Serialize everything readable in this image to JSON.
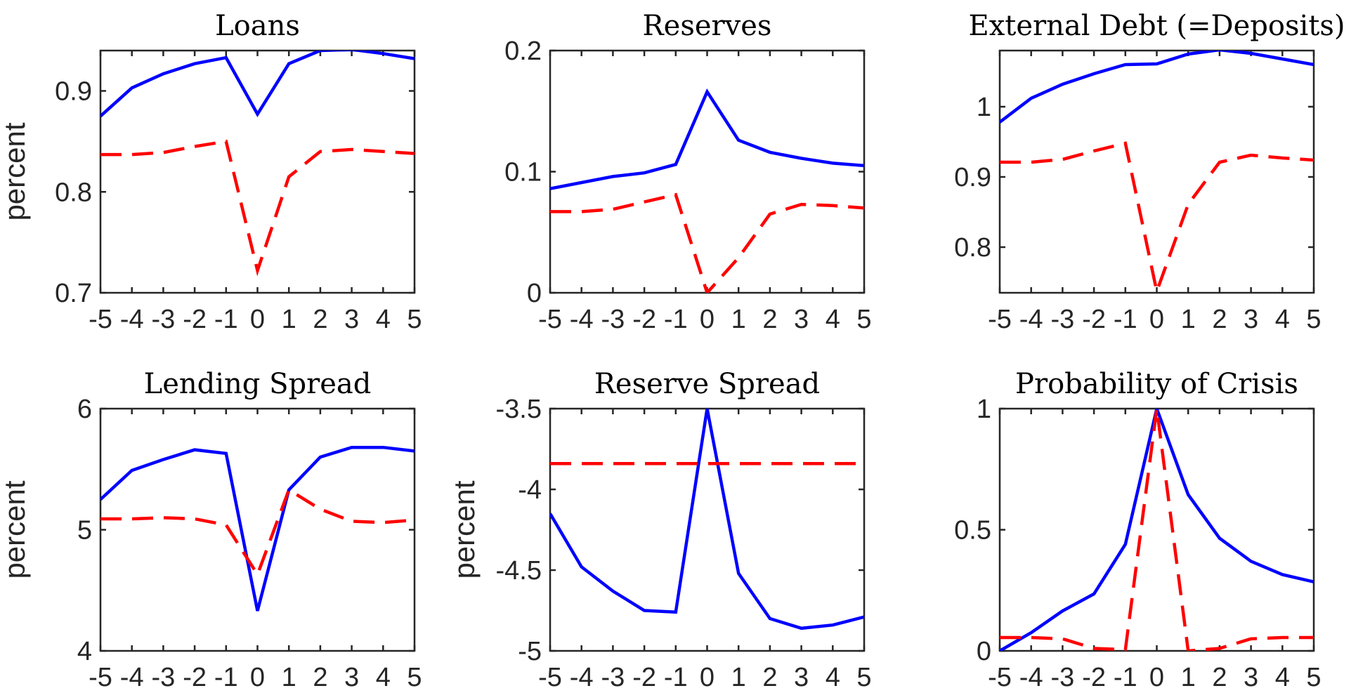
{
  "figure": {
    "series_colors": {
      "solid": "#0000ff",
      "dashed": "#ff0000"
    }
  },
  "chart_data": [
    {
      "type": "line",
      "title": "Loans",
      "ylabel": "percent",
      "x": [
        -5,
        -4,
        -3,
        -2,
        -1,
        0,
        1,
        2,
        3,
        4,
        5
      ],
      "xticks": [
        "-5",
        "-4",
        "-3",
        "-2",
        "-1",
        "0",
        "1",
        "2",
        "3",
        "4",
        "5"
      ],
      "ylim": [
        0.7,
        0.94
      ],
      "yticks": [
        0.7,
        0.8,
        0.9
      ],
      "ytick_labels": [
        "0.7",
        "0.8",
        "0.9"
      ],
      "series": [
        {
          "style": "solid",
          "color": "#0000ff",
          "values": [
            0.875,
            0.903,
            0.917,
            0.927,
            0.933,
            0.877,
            0.927,
            0.94,
            0.941,
            0.937,
            0.932
          ]
        },
        {
          "style": "dashed",
          "color": "#ff0000",
          "values": [
            0.837,
            0.837,
            0.839,
            0.845,
            0.85,
            0.722,
            0.815,
            0.84,
            0.842,
            0.84,
            0.838
          ]
        }
      ]
    },
    {
      "type": "line",
      "title": "Reserves",
      "ylabel": "",
      "x": [
        -5,
        -4,
        -3,
        -2,
        -1,
        0,
        1,
        2,
        3,
        4,
        5
      ],
      "xticks": [
        "-5",
        "-4",
        "-3",
        "-2",
        "-1",
        "0",
        "1",
        "2",
        "3",
        "4",
        "5"
      ],
      "ylim": [
        0,
        0.2
      ],
      "yticks": [
        0,
        0.1,
        0.2
      ],
      "ytick_labels": [
        "0",
        "0.1",
        "0.2"
      ],
      "series": [
        {
          "style": "solid",
          "color": "#0000ff",
          "values": [
            0.086,
            0.091,
            0.096,
            0.099,
            0.106,
            0.166,
            0.126,
            0.116,
            0.111,
            0.107,
            0.105
          ]
        },
        {
          "style": "dashed",
          "color": "#ff0000",
          "values": [
            0.067,
            0.067,
            0.069,
            0.075,
            0.081,
            0.0,
            0.029,
            0.065,
            0.073,
            0.072,
            0.07
          ]
        }
      ]
    },
    {
      "type": "line",
      "title": "External Debt (=Deposits)",
      "ylabel": "",
      "x": [
        -5,
        -4,
        -3,
        -2,
        -1,
        0,
        1,
        2,
        3,
        4,
        5
      ],
      "xticks": [
        "-5",
        "-4",
        "-3",
        "-2",
        "-1",
        "0",
        "1",
        "2",
        "3",
        "4",
        "5"
      ],
      "ylim": [
        0.735,
        1.08
      ],
      "yticks": [
        0.8,
        0.9,
        1.0
      ],
      "ytick_labels": [
        "0.8",
        "0.9",
        "1"
      ],
      "series": [
        {
          "style": "solid",
          "color": "#0000ff",
          "values": [
            0.978,
            1.012,
            1.032,
            1.047,
            1.06,
            1.061,
            1.075,
            1.081,
            1.076,
            1.068,
            1.06
          ]
        },
        {
          "style": "dashed",
          "color": "#ff0000",
          "values": [
            0.921,
            0.921,
            0.925,
            0.937,
            0.948,
            0.737,
            0.861,
            0.921,
            0.931,
            0.927,
            0.924
          ]
        }
      ]
    },
    {
      "type": "line",
      "title": "Lending Spread",
      "ylabel": "percent",
      "x": [
        -5,
        -4,
        -3,
        -2,
        -1,
        0,
        1,
        2,
        3,
        4,
        5
      ],
      "xticks": [
        "-5",
        "-4",
        "-3",
        "-2",
        "-1",
        "0",
        "1",
        "2",
        "3",
        "4",
        "5"
      ],
      "ylim": [
        4,
        6
      ],
      "yticks": [
        4,
        5,
        6
      ],
      "ytick_labels": [
        "4",
        "5",
        "6"
      ],
      "series": [
        {
          "style": "solid",
          "color": "#0000ff",
          "values": [
            5.25,
            5.49,
            5.58,
            5.66,
            5.63,
            4.33,
            5.33,
            5.6,
            5.68,
            5.68,
            5.65
          ]
        },
        {
          "style": "dashed",
          "color": "#ff0000",
          "values": [
            5.09,
            5.09,
            5.1,
            5.09,
            5.04,
            4.63,
            5.33,
            5.17,
            5.07,
            5.06,
            5.08
          ]
        }
      ]
    },
    {
      "type": "line",
      "title": "Reserve Spread",
      "ylabel": "percent",
      "x": [
        -5,
        -4,
        -3,
        -2,
        -1,
        0,
        1,
        2,
        3,
        4,
        5
      ],
      "xticks": [
        "-5",
        "-4",
        "-3",
        "-2",
        "-1",
        "0",
        "1",
        "2",
        "3",
        "4",
        "5"
      ],
      "ylim": [
        -5,
        -3.5
      ],
      "yticks": [
        -5,
        -4.5,
        -4,
        -3.5
      ],
      "ytick_labels": [
        "-5",
        "-4.5",
        "-4",
        "-3.5"
      ],
      "series": [
        {
          "style": "solid",
          "color": "#0000ff",
          "values": [
            -4.15,
            -4.48,
            -4.63,
            -4.75,
            -4.76,
            -3.5,
            -4.52,
            -4.8,
            -4.86,
            -4.84,
            -4.79
          ]
        },
        {
          "style": "dashed",
          "color": "#ff0000",
          "values": [
            -3.84,
            -3.84,
            -3.84,
            -3.84,
            -3.84,
            -3.84,
            -3.84,
            -3.84,
            -3.84,
            -3.84,
            -3.84
          ]
        }
      ]
    },
    {
      "type": "line",
      "title": "Probability of Crisis",
      "ylabel": "",
      "x": [
        -5,
        -4,
        -3,
        -2,
        -1,
        0,
        1,
        2,
        3,
        4,
        5
      ],
      "xticks": [
        "-5",
        "-4",
        "-3",
        "-2",
        "-1",
        "0",
        "1",
        "2",
        "3",
        "4",
        "5"
      ],
      "ylim": [
        0,
        1
      ],
      "yticks": [
        0,
        0.5,
        1
      ],
      "ytick_labels": [
        "0",
        "0.5",
        "1"
      ],
      "series": [
        {
          "style": "solid",
          "color": "#0000ff",
          "values": [
            0.0,
            0.075,
            0.165,
            0.235,
            0.44,
            1.0,
            0.645,
            0.465,
            0.37,
            0.315,
            0.285
          ]
        },
        {
          "style": "dashed",
          "color": "#ff0000",
          "values": [
            0.055,
            0.055,
            0.05,
            0.01,
            0.005,
            1.0,
            0.0,
            0.01,
            0.05,
            0.055,
            0.055
          ]
        }
      ]
    }
  ]
}
